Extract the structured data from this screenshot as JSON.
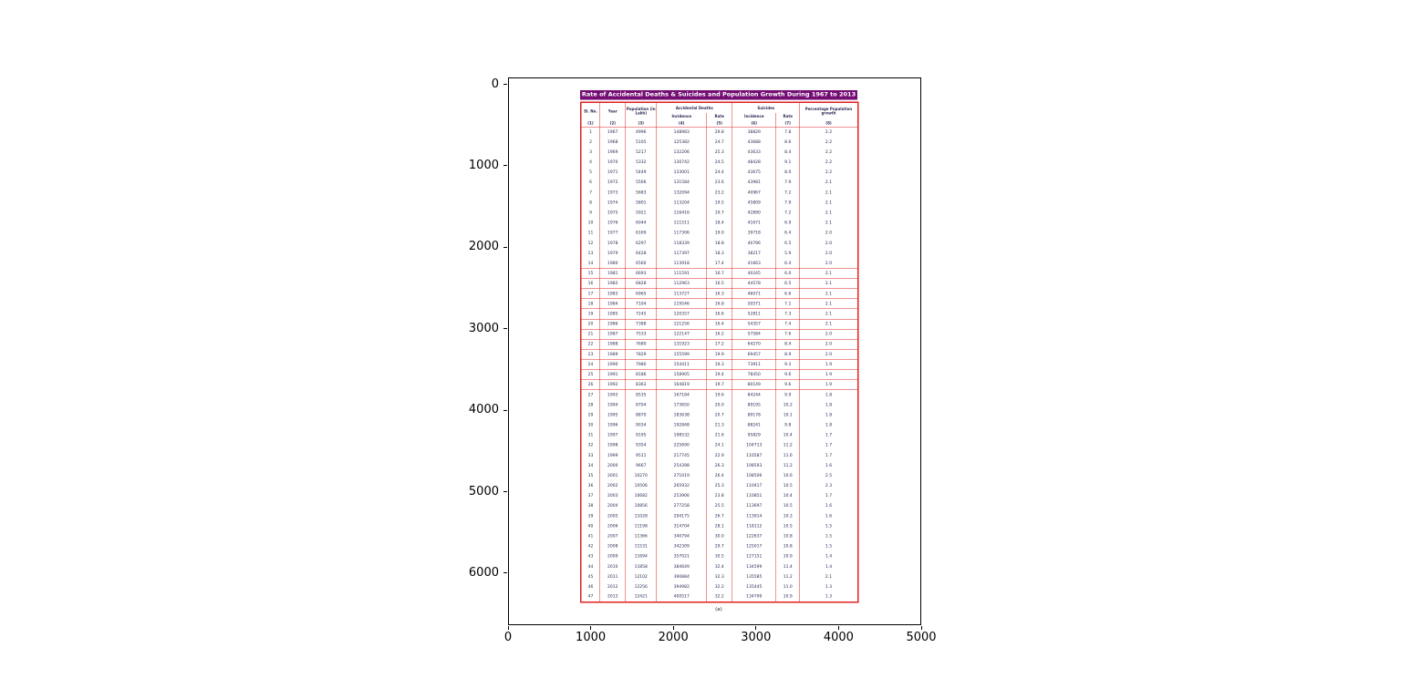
{
  "colors": {
    "title_bg": "#740d74",
    "table_border": "#e02020",
    "table_text": "#2a2a55",
    "axis": "#000000",
    "background": "#ffffff"
  },
  "axes": {
    "x_ticks": [
      "0",
      "1000",
      "2000",
      "3000",
      "4000",
      "5000"
    ],
    "y_ticks": [
      "0",
      "1000",
      "2000",
      "3000",
      "4000",
      "5000",
      "6000"
    ]
  },
  "chart_data": {
    "type": "table",
    "title": "Rate of Accidental Deaths & Suicides and Population Growth During 1967 to 2013",
    "caption": "(a)",
    "headers": {
      "sl": "Sl. No.",
      "year": "Year",
      "pop": "Population (in Lakh)",
      "ad": "Accidental Deaths",
      "su": "Suicides",
      "incidence": "Incidence",
      "rate": "Rate",
      "growth": "Percentage Population growth"
    },
    "col_numbers": [
      "(1)",
      "(2)",
      "(3)",
      "(4)",
      "(5)",
      "(6)",
      "(7)",
      "(8)"
    ],
    "rows": [
      [
        "1",
        "1967",
        "4996",
        "148983",
        "29.8",
        "38829",
        "7.8",
        "2.2"
      ],
      [
        "2",
        "1968",
        "5105",
        "125382",
        "24.7",
        "43688",
        "8.6",
        "2.2"
      ],
      [
        "3",
        "1969",
        "5217",
        "132206",
        "25.3",
        "43633",
        "8.4",
        "2.2"
      ],
      [
        "4",
        "1970",
        "5332",
        "130742",
        "24.5",
        "48428",
        "9.1",
        "2.2"
      ],
      [
        "5",
        "1971",
        "5449",
        "133001",
        "24.4",
        "43675",
        "8.0",
        "2.2"
      ],
      [
        "6",
        "1972",
        "5566",
        "131584",
        "23.6",
        "43981",
        "7.9",
        "2.1"
      ],
      [
        "7",
        "1973",
        "5683",
        "132094",
        "23.2",
        "40967",
        "7.2",
        "2.1"
      ],
      [
        "8",
        "1974",
        "5801",
        "113204",
        "19.5",
        "45809",
        "7.9",
        "2.1"
      ],
      [
        "9",
        "1975",
        "5921",
        "116416",
        "19.7",
        "42890",
        "7.2",
        "2.1"
      ],
      [
        "10",
        "1976",
        "6044",
        "111511",
        "18.4",
        "41671",
        "6.9",
        "2.1"
      ],
      [
        "11",
        "1977",
        "6169",
        "117306",
        "19.0",
        "39718",
        "6.4",
        "2.0"
      ],
      [
        "12",
        "1978",
        "6297",
        "118339",
        "18.8",
        "40796",
        "6.5",
        "2.0"
      ],
      [
        "13",
        "1979",
        "6428",
        "117397",
        "18.3",
        "38217",
        "5.9",
        "2.0"
      ],
      [
        "14",
        "1980",
        "6560",
        "113918",
        "17.4",
        "41663",
        "6.4",
        "2.0"
      ],
      [
        "15",
        "1981",
        "6693",
        "111591",
        "16.7",
        "40245",
        "6.0",
        "2.1"
      ],
      [
        "16",
        "1982",
        "6828",
        "112963",
        "16.5",
        "44578",
        "6.5",
        "2.1"
      ],
      [
        "17",
        "1983",
        "6965",
        "113727",
        "16.3",
        "46071",
        "6.6",
        "2.1"
      ],
      [
        "18",
        "1984",
        "7104",
        "119546",
        "16.8",
        "50571",
        "7.1",
        "2.1"
      ],
      [
        "19",
        "1985",
        "7245",
        "120357",
        "16.6",
        "52811",
        "7.3",
        "2.1"
      ],
      [
        "20",
        "1986",
        "7388",
        "121256",
        "16.4",
        "54357",
        "7.4",
        "2.1"
      ],
      [
        "21",
        "1987",
        "7533",
        "122147",
        "16.2",
        "57584",
        "7.6",
        "2.0"
      ],
      [
        "22",
        "1988",
        "7680",
        "131923",
        "17.2",
        "64270",
        "8.4",
        "2.0"
      ],
      [
        "23",
        "1989",
        "7829",
        "155599",
        "19.9",
        "69457",
        "8.9",
        "2.0"
      ],
      [
        "24",
        "1990",
        "7980",
        "154411",
        "19.3",
        "73911",
        "9.3",
        "1.9"
      ],
      [
        "25",
        "1991",
        "8186",
        "158905",
        "19.4",
        "78450",
        "9.6",
        "1.9"
      ],
      [
        "26",
        "1992",
        "8363",
        "164819",
        "19.7",
        "80149",
        "9.6",
        "1.9"
      ],
      [
        "27",
        "1993",
        "8535",
        "167184",
        "19.6",
        "84244",
        "9.9",
        "1.8"
      ],
      [
        "28",
        "1994",
        "8704",
        "173650",
        "20.0",
        "89195",
        "10.2",
        "1.8"
      ],
      [
        "29",
        "1995",
        "8870",
        "183638",
        "20.7",
        "89178",
        "10.1",
        "1.8"
      ],
      [
        "30",
        "1996",
        "9034",
        "192848",
        "21.3",
        "88241",
        "9.8",
        "1.8"
      ],
      [
        "31",
        "1997",
        "9195",
        "198532",
        "21.6",
        "95829",
        "10.4",
        "1.7"
      ],
      [
        "32",
        "1998",
        "9354",
        "225690",
        "24.1",
        "104713",
        "11.2",
        "1.7"
      ],
      [
        "33",
        "1999",
        "9511",
        "217745",
        "22.9",
        "110587",
        "11.6",
        "1.7"
      ],
      [
        "34",
        "2000",
        "9667",
        "254398",
        "26.3",
        "108593",
        "11.2",
        "1.6"
      ],
      [
        "35",
        "2001",
        "10270",
        "271019",
        "26.4",
        "108506",
        "10.6",
        "2.5"
      ],
      [
        "36",
        "2002",
        "10506",
        "265932",
        "25.3",
        "110417",
        "10.5",
        "2.3"
      ],
      [
        "37",
        "2003",
        "10682",
        "253906",
        "23.8",
        "110851",
        "10.4",
        "1.7"
      ],
      [
        "38",
        "2004",
        "10856",
        "277258",
        "25.5",
        "113697",
        "10.5",
        "1.6"
      ],
      [
        "39",
        "2005",
        "11028",
        "294175",
        "26.7",
        "113914",
        "10.3",
        "1.6"
      ],
      [
        "40",
        "2006",
        "11198",
        "314704",
        "28.1",
        "118112",
        "10.5",
        "1.5"
      ],
      [
        "41",
        "2007",
        "11366",
        "340794",
        "30.0",
        "122637",
        "10.8",
        "1.5"
      ],
      [
        "42",
        "2008",
        "11531",
        "342309",
        "29.7",
        "125017",
        "10.8",
        "1.5"
      ],
      [
        "43",
        "2009",
        "11694",
        "357021",
        "30.5",
        "127151",
        "10.9",
        "1.4"
      ],
      [
        "44",
        "2010",
        "11858",
        "384649",
        "32.4",
        "134599",
        "11.4",
        "1.4"
      ],
      [
        "45",
        "2011",
        "12102",
        "390884",
        "32.3",
        "135585",
        "11.2",
        "2.1"
      ],
      [
        "46",
        "2012",
        "12256",
        "394982",
        "32.2",
        "135445",
        "11.0",
        "1.3"
      ],
      [
        "47",
        "2013",
        "12421",
        "400517",
        "32.2",
        "134799",
        "10.9",
        "1.3"
      ]
    ],
    "boxed_rows_from": 15,
    "boxed_rows_to": 26
  }
}
